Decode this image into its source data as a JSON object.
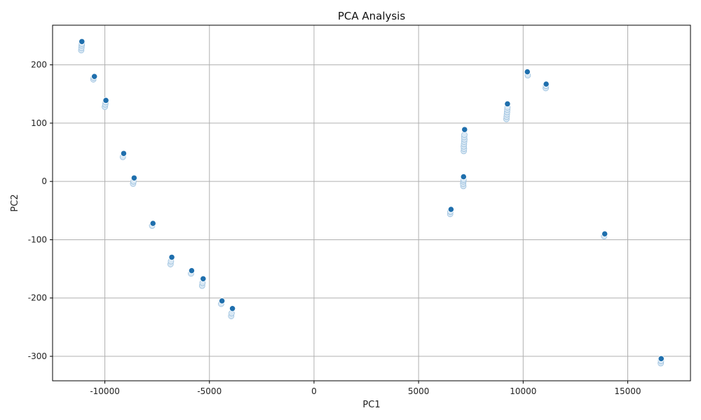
{
  "chart_data": {
    "type": "scatter",
    "title": "PCA Analysis",
    "xlabel": "PC1",
    "ylabel": "PC2",
    "xlim": [
      -12500,
      18000
    ],
    "ylim": [
      -342,
      268
    ],
    "xticks": [
      -10000,
      -5000,
      0,
      5000,
      10000,
      15000
    ],
    "xtick_labels": [
      "-10000",
      "-5000",
      "0",
      "5000",
      "10000",
      "15000"
    ],
    "yticks": [
      -300,
      -200,
      -100,
      0,
      100,
      200
    ],
    "ytick_labels": [
      "-300",
      "-200",
      "-100",
      "0",
      "100",
      "200"
    ],
    "grid": true,
    "colors": {
      "point_main": "#1f6fad",
      "point_light": "#d9e8f4",
      "point_light_edge": "#9ec2df",
      "grid": "#b0b0b0",
      "axis": "#000000"
    },
    "series": [
      {
        "role": "highlighted",
        "x": [
          -11100,
          -10500,
          -9950,
          -9100,
          -8600,
          -7700,
          -6800,
          -5850,
          -5300,
          -4400,
          -3900,
          6550,
          7150,
          7200,
          9250,
          10200,
          11100,
          13900,
          16600
        ],
        "y": [
          240,
          180,
          139,
          48,
          6,
          -72,
          -130,
          -153,
          -167,
          -205,
          -218,
          -48,
          8,
          89,
          133,
          188,
          167,
          -90,
          -304
        ]
      },
      {
        "role": "faint",
        "x": [
          -11130,
          -11120,
          -11110,
          -11100,
          -10550,
          -10530,
          -10000,
          -9980,
          -9960,
          -9140,
          -8650,
          -8630,
          -7740,
          -6860,
          -6840,
          -5880,
          -5350,
          -5330,
          -4440,
          -3960,
          -3940,
          6510,
          6520,
          7140,
          7130,
          7140,
          7150,
          7160,
          7170,
          7160,
          7170,
          7180,
          7190,
          7180,
          7190,
          9200,
          9210,
          9220,
          9230,
          9240,
          9250,
          10220,
          11080,
          11090,
          13870,
          16580,
          16590
        ],
        "y": [
          225,
          229,
          233,
          236,
          175,
          178,
          128,
          132,
          136,
          42,
          -4,
          0,
          -76,
          -142,
          -137,
          -158,
          -179,
          -174,
          -210,
          -231,
          -226,
          -56,
          -52,
          -8,
          -4,
          0,
          3,
          52,
          56,
          60,
          64,
          68,
          72,
          76,
          80,
          107,
          111,
          115,
          119,
          123,
          127,
          182,
          160,
          164,
          -94,
          -312,
          -308
        ]
      }
    ]
  }
}
